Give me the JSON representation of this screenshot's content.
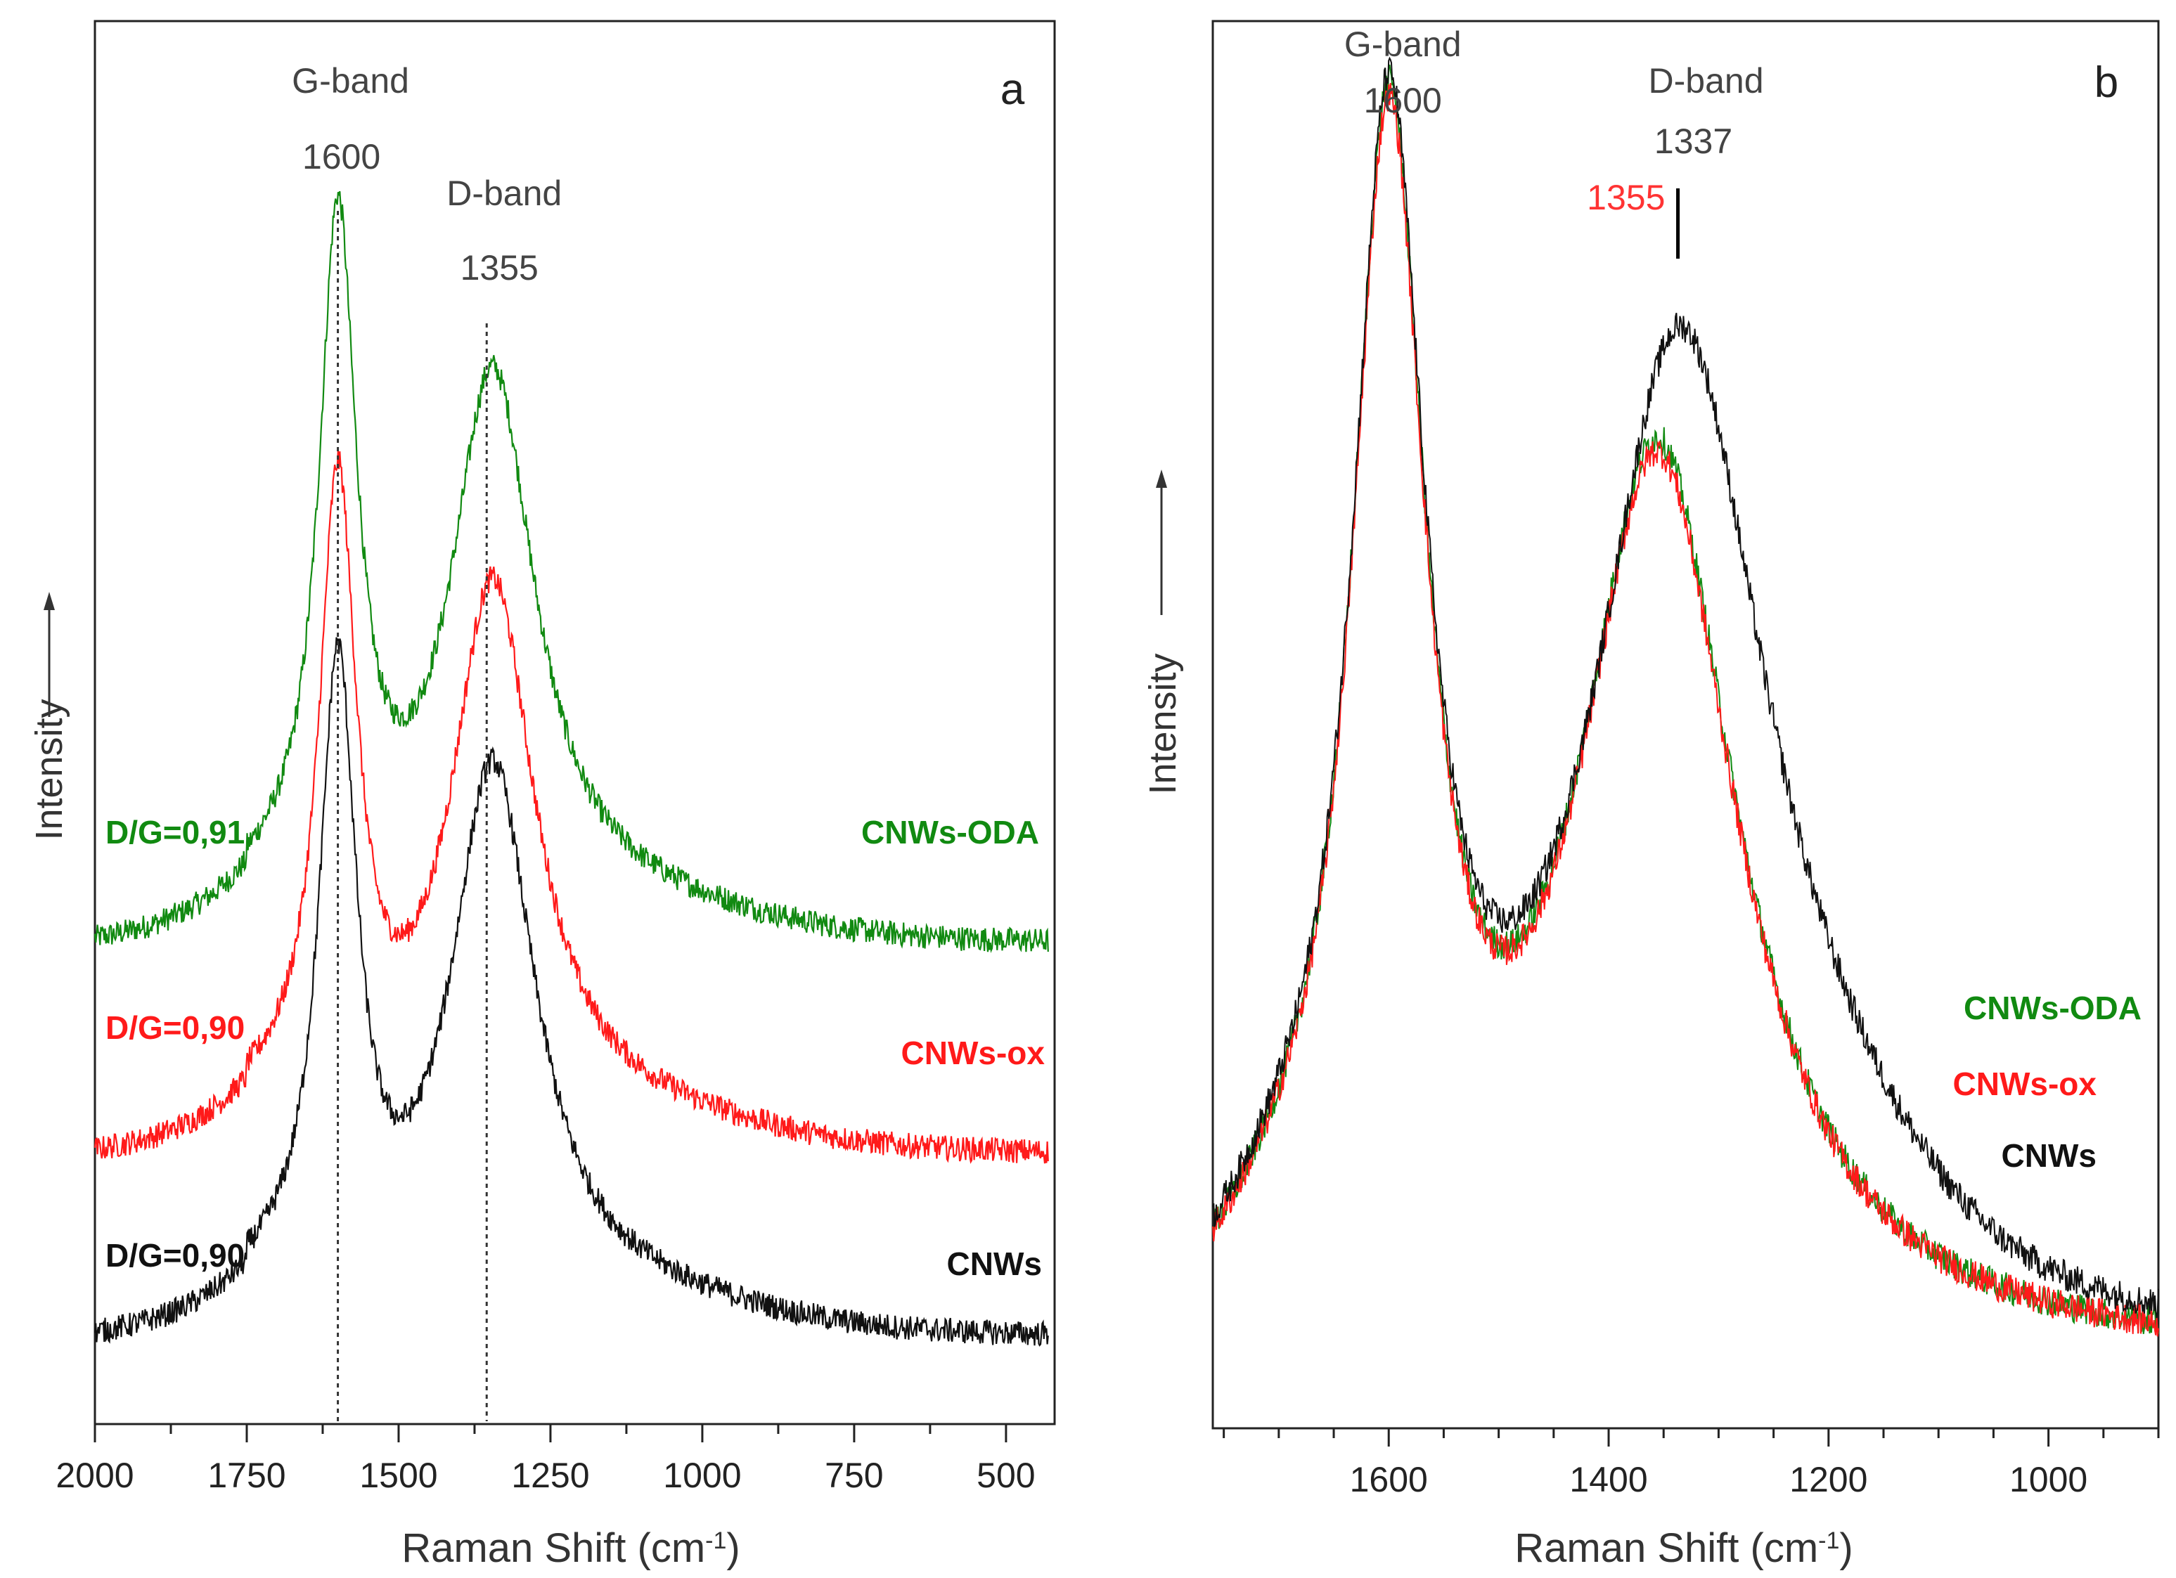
{
  "chart_data": [
    {
      "panel": "a",
      "type": "line",
      "xlabel": "Raman Shift (cm",
      "xlabel_sup": "-1",
      "xlabel_close": ")",
      "ylabel": "Intensity",
      "xlim": [
        2000,
        420
      ],
      "xticks": [
        2000,
        1750,
        1500,
        1250,
        1000,
        750,
        500
      ],
      "y_ticks_shown": false,
      "annotations": [
        {
          "text": "G-band",
          "x": 1600
        },
        {
          "text": "1600",
          "x": 1600
        },
        {
          "text": "D-band",
          "x": 1355
        },
        {
          "text": "1355",
          "x": 1355
        }
      ],
      "reference_lines": [
        1600,
        1355
      ],
      "series": [
        {
          "name": "CNWs-ODA",
          "color": "#118a11",
          "ratio_label": "D/G=0,91",
          "baseline": 0.34,
          "g_peak": 0.84,
          "d_peak": 0.76,
          "valley": 0.58
        },
        {
          "name": "CNWs-ox",
          "color": "#ff1a1a",
          "ratio_label": "D/G=0,90",
          "baseline": 0.19,
          "g_peak": 0.65,
          "d_peak": 0.61,
          "valley": 0.42
        },
        {
          "name": "CNWs",
          "color": "#111111",
          "ratio_label": "D/G=0,90",
          "baseline": 0.06,
          "g_peak": 0.52,
          "d_peak": 0.48,
          "valley": 0.28
        }
      ]
    },
    {
      "panel": "b",
      "type": "line",
      "xlabel": "Raman Shift (cm",
      "xlabel_sup": "-1",
      "xlabel_close": ")",
      "ylabel": "Intensity",
      "xlim": [
        1760,
        900
      ],
      "xticks": [
        1600,
        1400,
        1200,
        1000
      ],
      "y_ticks_shown": false,
      "annotations": [
        {
          "text": "G-band",
          "x": 1600,
          "color": "#444444"
        },
        {
          "text": "1600",
          "x": 1600,
          "color": "#444444"
        },
        {
          "text": "D-band",
          "x": 1337,
          "color": "#444444"
        },
        {
          "text": "1337",
          "x": 1337,
          "color": "#444444"
        },
        {
          "text": "1355",
          "x": 1355,
          "color": "#ff3333"
        }
      ],
      "series": [
        {
          "name": "CNWs-ODA",
          "color": "#118a11",
          "g_peak": 0.91,
          "d_peak": 0.75,
          "valley": 0.43
        },
        {
          "name": "CNWs-ox",
          "color": "#ff1a1a",
          "g_peak": 0.9,
          "d_peak": 0.74,
          "valley": 0.42
        },
        {
          "name": "CNWs",
          "color": "#111111",
          "g_peak": 0.9,
          "d_peak": 0.83,
          "valley": 0.45
        }
      ]
    }
  ]
}
